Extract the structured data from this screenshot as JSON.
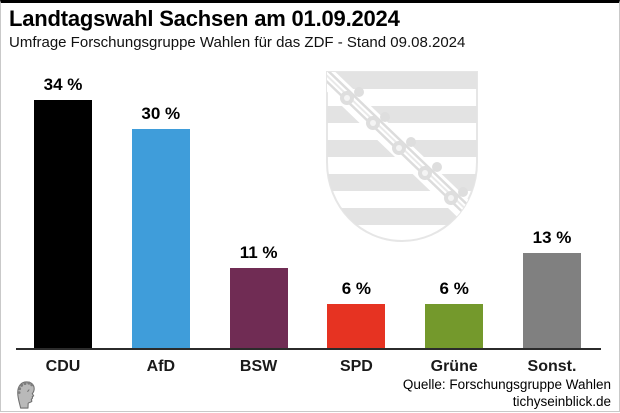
{
  "header": {
    "title": "Landtagswahl Sachsen am 01.09.2024",
    "subtitle": "Umfrage Forschungsgruppe Wahlen für das ZDF - Stand 09.08.2024"
  },
  "chart_data": {
    "type": "bar",
    "title": "Landtagswahl Sachsen am 01.09.2024",
    "subtitle": "Umfrage Forschungsgruppe Wahlen für das ZDF - Stand 09.08.2024",
    "categories": [
      "CDU",
      "AfD",
      "BSW",
      "SPD",
      "Grüne",
      "Sonst."
    ],
    "values": [
      34,
      30,
      11,
      6,
      6,
      13
    ],
    "value_labels": [
      "34 %",
      "30 %",
      "11 %",
      "6 %",
      "6 %",
      "13 %"
    ],
    "bar_colors": [
      "#000000",
      "#3f9dda",
      "#702c54",
      "#e63322",
      "#74992c",
      "#808080"
    ],
    "unit": "%",
    "ylim": [
      0,
      38
    ],
    "grid": false,
    "legend": "none",
    "xlabel": "",
    "ylabel": "",
    "watermark": "saxony-coat-of-arms"
  },
  "footer": {
    "source": "Quelle: Forschungsgruppe Wahlen",
    "website": "tichyseinblick.de",
    "logo": "tichyseinblick-head-logo"
  },
  "colors": {
    "top_border": "#000000",
    "frame_border": "#c9c9c9",
    "axis": "#2b2b2b",
    "watermark_gray": "#e3e3e3"
  }
}
